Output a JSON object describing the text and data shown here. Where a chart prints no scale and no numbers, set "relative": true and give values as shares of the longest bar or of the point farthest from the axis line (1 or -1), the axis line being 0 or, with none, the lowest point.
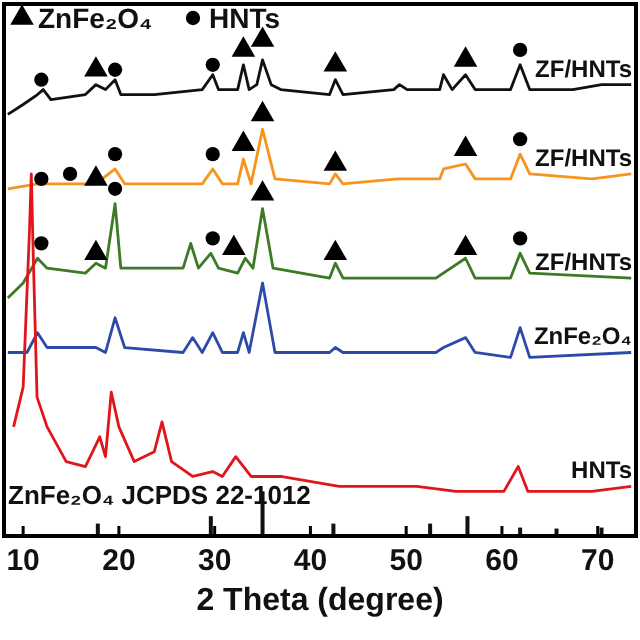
{
  "chart_data": {
    "type": "line",
    "relative": true,
    "xlabel": "2 Theta (degree)",
    "xlim": [
      8,
      74
    ],
    "xticks": [
      10,
      20,
      30,
      40,
      50,
      60,
      70
    ],
    "grid": false,
    "legend": "top left",
    "line_style": "solid",
    "series": [
      {
        "name": "ZF/HNTs",
        "color": "#111111",
        "x": [
          8.4,
          10.0,
          11.5,
          12.1,
          12.9,
          16.5,
          17.6,
          18.6,
          19.6,
          20.2,
          23.7,
          28.7,
          29.8,
          30.4,
          32.4,
          33.0,
          33.6,
          34.4,
          35.0,
          35.9,
          36.9,
          42.0,
          42.6,
          43.4,
          48.7,
          49.3,
          50.1,
          53.5,
          53.9,
          54.8,
          56.2,
          57.2,
          60.9,
          61.9,
          62.9,
          67.4,
          70.4,
          73.5
        ],
        "values": [
          0.85,
          0.87,
          0.89,
          0.9,
          0.88,
          0.89,
          0.91,
          0.9,
          0.92,
          0.89,
          0.89,
          0.9,
          0.93,
          0.9,
          0.9,
          0.95,
          0.9,
          0.91,
          0.96,
          0.91,
          0.9,
          0.89,
          0.92,
          0.89,
          0.9,
          0.91,
          0.9,
          0.9,
          0.93,
          0.9,
          0.93,
          0.9,
          0.9,
          0.95,
          0.9,
          0.9,
          0.91,
          0.91
        ]
      },
      {
        "name": "ZF/HNTs",
        "color": "#f7941d",
        "x": [
          8.4,
          11.5,
          17.6,
          19.6,
          20.6,
          28.7,
          29.8,
          30.8,
          32.4,
          33.0,
          33.8,
          35.0,
          36.3,
          42.0,
          42.6,
          43.4,
          49.1,
          53.5,
          53.9,
          56.2,
          57.2,
          60.9,
          61.9,
          62.9,
          69.4,
          73.5
        ],
        "values": [
          0.7,
          0.71,
          0.71,
          0.74,
          0.71,
          0.71,
          0.74,
          0.71,
          0.71,
          0.76,
          0.71,
          0.82,
          0.72,
          0.71,
          0.73,
          0.71,
          0.72,
          0.72,
          0.74,
          0.75,
          0.72,
          0.72,
          0.77,
          0.73,
          0.72,
          0.73
        ]
      },
      {
        "name": "ZF/HNTs",
        "color": "#3d7a26",
        "x": [
          8.4,
          10.0,
          11.5,
          12.5,
          16.5,
          17.6,
          18.6,
          19.6,
          20.2,
          26.7,
          27.5,
          28.3,
          29.6,
          30.4,
          32.4,
          33.2,
          34.0,
          35.0,
          36.1,
          42.0,
          42.6,
          43.4,
          53.1,
          56.2,
          57.2,
          60.9,
          61.9,
          62.9,
          73.5
        ],
        "values": [
          0.48,
          0.51,
          0.56,
          0.54,
          0.53,
          0.55,
          0.54,
          0.67,
          0.54,
          0.54,
          0.59,
          0.54,
          0.57,
          0.54,
          0.53,
          0.56,
          0.54,
          0.66,
          0.54,
          0.52,
          0.55,
          0.52,
          0.52,
          0.56,
          0.52,
          0.52,
          0.57,
          0.53,
          0.52
        ]
      },
      {
        "name": "ZnFe₂O₄",
        "color": "#2e4aa8",
        "x": [
          8.4,
          10.4,
          11.5,
          12.5,
          17.6,
          18.6,
          19.6,
          20.6,
          26.7,
          27.7,
          28.7,
          29.8,
          30.8,
          32.4,
          33.0,
          33.6,
          35.0,
          36.3,
          42.0,
          42.6,
          43.4,
          53.1,
          53.9,
          56.2,
          57.2,
          60.9,
          61.9,
          62.9,
          73.5
        ],
        "values": [
          0.37,
          0.37,
          0.41,
          0.38,
          0.38,
          0.37,
          0.44,
          0.38,
          0.37,
          0.4,
          0.37,
          0.41,
          0.37,
          0.37,
          0.41,
          0.37,
          0.51,
          0.37,
          0.37,
          0.38,
          0.37,
          0.37,
          0.38,
          0.4,
          0.37,
          0.36,
          0.42,
          0.36,
          0.37
        ]
      },
      {
        "name": "HNTs",
        "color": "#e0161b",
        "x": [
          9.0,
          10.0,
          10.65,
          10.85,
          11.05,
          11.45,
          12.5,
          14.5,
          16.5,
          18.0,
          18.6,
          19.2,
          20.0,
          21.6,
          23.7,
          24.5,
          25.5,
          27.7,
          29.8,
          30.8,
          32.2,
          33.8,
          36.9,
          43.0,
          49.1,
          51.1,
          55.2,
          60.2,
          61.7,
          62.7,
          69.4,
          73.5
        ],
        "values": [
          0.22,
          0.3,
          0.61,
          0.73,
          0.57,
          0.28,
          0.22,
          0.15,
          0.14,
          0.2,
          0.16,
          0.29,
          0.22,
          0.15,
          0.17,
          0.23,
          0.15,
          0.12,
          0.13,
          0.12,
          0.16,
          0.12,
          0.12,
          0.1,
          0.1,
          0.1,
          0.09,
          0.09,
          0.14,
          0.09,
          0.09,
          0.1
        ]
      },
      {
        "name": "ZnFe₂O₄ JCPDS  22-1012",
        "type": "bar",
        "color": "#111111",
        "x": [
          17.8,
          29.6,
          35.0,
          42.4,
          52.5,
          56.4,
          61.9,
          65.7,
          70.4
        ],
        "values": [
          0.025,
          0.04,
          0.09,
          0.025,
          0.025,
          0.04,
          0.017,
          0.015,
          0.017
        ]
      },
      {
        "name": "ZnFe₂O₄",
        "type": "scatter",
        "marker": "triangle",
        "color": "#000000",
        "x": [
          17.6,
          33.0,
          35.0,
          42.6,
          56.2,
          17.6,
          33.0,
          35.0,
          42.6,
          56.2,
          17.6,
          32.0,
          35.0,
          42.6,
          56.2
        ],
        "values": [
          0.94,
          0.98,
          1.0,
          0.95,
          0.96,
          0.72,
          0.79,
          0.85,
          0.75,
          0.78,
          0.57,
          0.58,
          0.69,
          0.57,
          0.58
        ]
      },
      {
        "name": "HNTs",
        "type": "scatter",
        "marker": "circle",
        "color": "#000000",
        "x": [
          11.9,
          19.6,
          29.8,
          61.9,
          11.9,
          14.9,
          19.6,
          29.8,
          61.9,
          11.9,
          19.6,
          29.8,
          61.9
        ],
        "values": [
          0.92,
          0.94,
          0.95,
          0.98,
          0.72,
          0.73,
          0.77,
          0.77,
          0.8,
          0.59,
          0.7,
          0.6,
          0.6
        ]
      }
    ]
  }
}
